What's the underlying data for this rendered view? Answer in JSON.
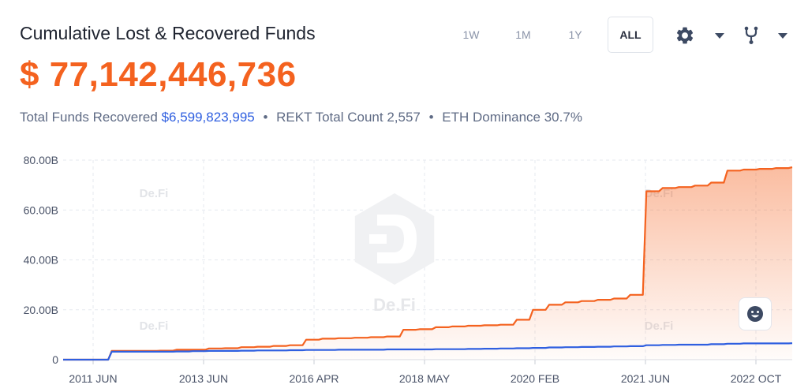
{
  "header": {
    "title": "Cumulative Lost & Recovered Funds",
    "total_value": "$ 77,142,446,736"
  },
  "stats": {
    "recovered_label": "Total Funds Recovered",
    "recovered_value": "$6,599,823,995",
    "rekt_count_label": "REKT Total Count 2,557",
    "eth_dominance_label": "ETH Dominance 30.7%",
    "separator": "•"
  },
  "range_selector": {
    "options": [
      "1W",
      "1M",
      "1Y",
      "ALL"
    ],
    "selected": "ALL"
  },
  "toolbar": {
    "settings_icon": "gear-icon",
    "fork_icon": "fork-icon",
    "dropdown_icon": "caret-down-icon"
  },
  "watermark": {
    "text": "De.Fi"
  },
  "colors": {
    "lost": "#f4621f",
    "recovered": "#2f5fe0",
    "accent_text": "#f4621f"
  },
  "chart_data": {
    "type": "area",
    "title": "",
    "xlabel": "",
    "ylabel": "",
    "ylim": [
      0,
      80
    ],
    "y_unit": "B",
    "y_ticks": [
      "0",
      "20.00B",
      "40.00B",
      "60.00B",
      "80.00B"
    ],
    "x_tick_labels": [
      "2011 JUN",
      "2013 JUN",
      "2016 APR",
      "2018 MAY",
      "2020 FEB",
      "2021 JUN",
      "2022 OCT"
    ],
    "grid": true,
    "legend": "none",
    "series": [
      {
        "key": "lost",
        "values": [
          0,
          0,
          0,
          3.5,
          3.5,
          3.5,
          3.6,
          4.0,
          4.0,
          4.5,
          4.6,
          5.0,
          5.2,
          5.5,
          5.8,
          8.0,
          8.4,
          8.6,
          8.8,
          9.0,
          9.3,
          12.0,
          12.2,
          13.0,
          13.3,
          13.6,
          13.8,
          14.0,
          16.0,
          20.0,
          22.0,
          23.0,
          23.5,
          24.0,
          24.5,
          26.0,
          67.5,
          68.8,
          69.2,
          69.8,
          71.0,
          75.8,
          76.2,
          76.5,
          76.8,
          77.14
        ]
      },
      {
        "key": "recovered",
        "values": [
          0,
          0,
          0,
          3.2,
          3.2,
          3.2,
          3.2,
          3.3,
          3.4,
          3.5,
          3.5,
          3.6,
          3.7,
          3.7,
          3.8,
          3.9,
          3.9,
          4.0,
          4.0,
          4.0,
          4.1,
          4.1,
          4.1,
          4.2,
          4.2,
          4.3,
          4.4,
          4.5,
          4.6,
          4.7,
          4.9,
          5.0,
          5.1,
          5.2,
          5.3,
          5.4,
          5.8,
          5.9,
          6.0,
          6.0,
          6.2,
          6.4,
          6.5,
          6.5,
          6.5,
          6.6
        ]
      }
    ]
  }
}
